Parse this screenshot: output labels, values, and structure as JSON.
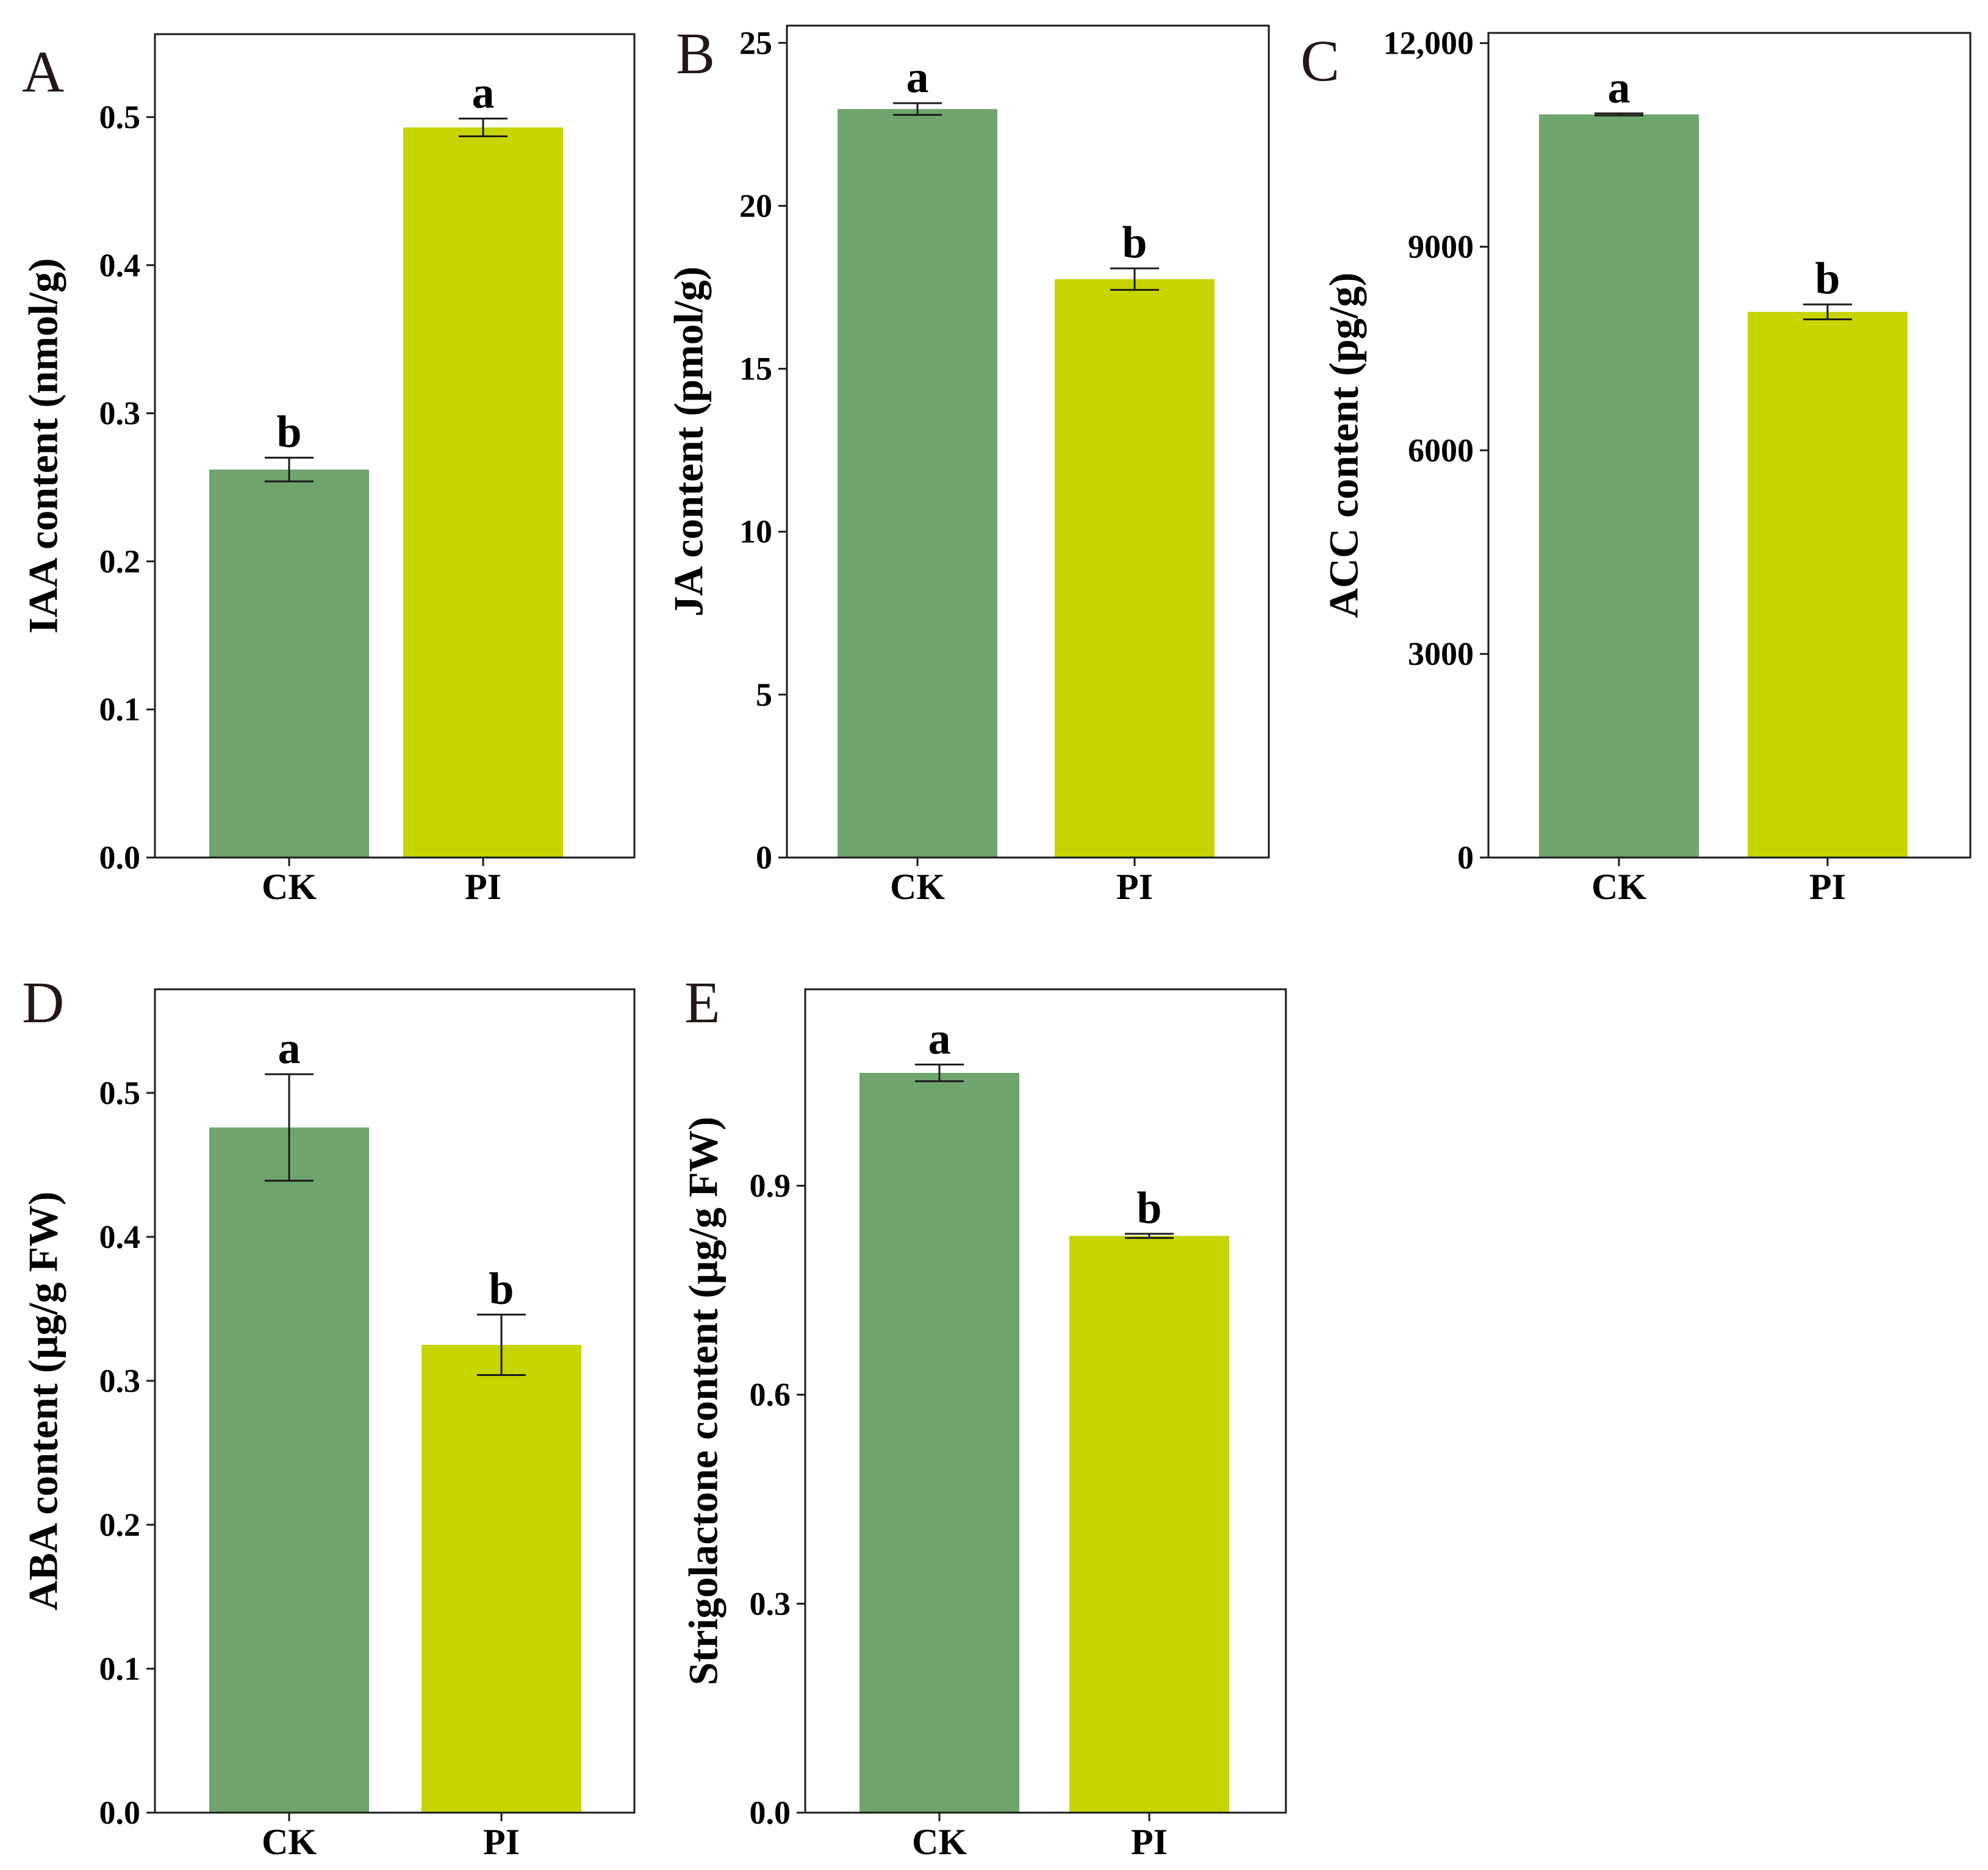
{
  "colors": {
    "CK": "#6fa46f",
    "PI": "#c6d400"
  },
  "chart_data": [
    {
      "type": "bar",
      "panel": "A",
      "categories": [
        "CK",
        "PI"
      ],
      "values": [
        0.262,
        0.493
      ],
      "errors": [
        0.008,
        0.006
      ],
      "significance": [
        "b",
        "a"
      ],
      "ylabel": "IAA content (nmol/g)",
      "ylim": [
        0,
        0.556
      ],
      "yticks": [
        0.0,
        0.1,
        0.2,
        0.3,
        0.4,
        0.5
      ],
      "ytick_labels": [
        "0.0",
        "0.1",
        "0.2",
        "0.3",
        "0.4",
        "0.5"
      ]
    },
    {
      "type": "bar",
      "panel": "B",
      "categories": [
        "CK",
        "PI"
      ],
      "values": [
        22.97,
        17.75
      ],
      "errors": [
        0.18,
        0.33
      ],
      "significance": [
        "a",
        "b"
      ],
      "ylabel": "JA content (pmol/g)",
      "ylim": [
        0,
        25.53
      ],
      "yticks": [
        0,
        5,
        10,
        15,
        20,
        25
      ],
      "ytick_labels": [
        "0",
        "5",
        "10",
        "15",
        "20",
        "25"
      ]
    },
    {
      "type": "bar",
      "panel": "C",
      "categories": [
        "CK",
        "PI"
      ],
      "values": [
        10950,
        8040
      ],
      "errors": [
        15,
        110
      ],
      "significance": [
        "a",
        "b"
      ],
      "ylabel": "ACC content (pg/g)",
      "ylim": [
        0,
        12150
      ],
      "yticks": [
        0,
        3000,
        6000,
        9000,
        12000
      ],
      "ytick_labels": [
        "0",
        "3000",
        "6000",
        "9000",
        "12,000"
      ]
    },
    {
      "type": "bar",
      "panel": "D",
      "categories": [
        "CK",
        "PI"
      ],
      "values": [
        0.476,
        0.325
      ],
      "errors": [
        0.037,
        0.021
      ],
      "significance": [
        "a",
        "b"
      ],
      "ylabel": "ABA content (µg/g FW)",
      "ylim": [
        0,
        0.572
      ],
      "yticks": [
        0.0,
        0.1,
        0.2,
        0.3,
        0.4,
        0.5
      ],
      "ytick_labels": [
        "0.0",
        "0.1",
        "0.2",
        "0.3",
        "0.4",
        "0.5"
      ]
    },
    {
      "type": "bar",
      "panel": "E",
      "categories": [
        "CK",
        "PI"
      ],
      "values": [
        1.062,
        0.828
      ],
      "errors": [
        0.012,
        0.003
      ],
      "significance": [
        "a",
        "b"
      ],
      "ylabel": "Strigolactone content (µg/g FW)",
      "ylim": [
        0,
        1.182
      ],
      "yticks": [
        0.0,
        0.3,
        0.6,
        0.9
      ],
      "ytick_labels": [
        "0.0",
        "0.3",
        "0.6",
        "0.9"
      ]
    }
  ]
}
